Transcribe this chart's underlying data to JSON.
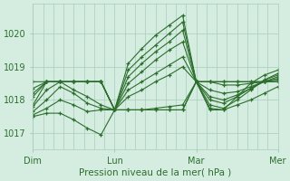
{
  "bg_color": "#d4ede0",
  "grid_color": "#a8cdb8",
  "line_color": "#2d6e2d",
  "marker_color": "#2d6e2d",
  "xlabel_text": "Pression niveau de la mer( hPa )",
  "x_tick_labels": [
    "Dim",
    "Lun",
    "Mar",
    "Mer"
  ],
  "x_tick_positions": [
    0,
    48,
    96,
    144
  ],
  "ylim": [
    1016.5,
    1020.9
  ],
  "yticks": [
    1017,
    1018,
    1019,
    1020
  ],
  "xlim": [
    0,
    144
  ],
  "series": [
    [
      0,
      1017.85,
      8,
      1018.55,
      16,
      1018.55,
      24,
      1018.55,
      32,
      1018.55,
      40,
      1018.55,
      48,
      1017.7,
      56,
      1019.1,
      64,
      1019.55,
      72,
      1019.95,
      80,
      1020.25,
      88,
      1020.55,
      96,
      1018.55,
      104,
      1017.75,
      112,
      1017.7,
      120,
      1018.1,
      128,
      1018.5,
      136,
      1018.75,
      144,
      1018.9
    ],
    [
      0,
      1018.1,
      8,
      1018.55,
      16,
      1018.55,
      24,
      1018.55,
      32,
      1018.55,
      40,
      1018.55,
      48,
      1017.7,
      56,
      1018.9,
      64,
      1019.3,
      72,
      1019.65,
      80,
      1020.0,
      88,
      1020.35,
      96,
      1018.55,
      104,
      1017.85,
      112,
      1017.75,
      120,
      1018.0,
      128,
      1018.3,
      136,
      1018.6,
      144,
      1018.8
    ],
    [
      0,
      1018.2,
      8,
      1018.55,
      16,
      1018.55,
      24,
      1018.55,
      32,
      1018.55,
      40,
      1018.55,
      48,
      1017.7,
      56,
      1018.7,
      64,
      1019.1,
      72,
      1019.45,
      80,
      1019.75,
      88,
      1020.1,
      96,
      1018.55,
      104,
      1018.0,
      112,
      1017.9,
      120,
      1018.1,
      128,
      1018.35,
      136,
      1018.6,
      144,
      1018.75
    ],
    [
      0,
      1018.35,
      8,
      1018.55,
      16,
      1018.55,
      24,
      1018.55,
      32,
      1018.55,
      40,
      1018.55,
      48,
      1017.7,
      56,
      1018.5,
      64,
      1018.85,
      72,
      1019.2,
      80,
      1019.5,
      88,
      1019.75,
      96,
      1018.55,
      104,
      1018.1,
      112,
      1018.0,
      120,
      1018.15,
      128,
      1018.35,
      136,
      1018.55,
      144,
      1018.7
    ],
    [
      0,
      1018.55,
      8,
      1018.55,
      16,
      1018.55,
      24,
      1018.55,
      32,
      1018.55,
      40,
      1018.55,
      48,
      1017.7,
      56,
      1018.3,
      64,
      1018.55,
      72,
      1018.8,
      80,
      1019.05,
      88,
      1019.3,
      96,
      1018.55,
      104,
      1018.3,
      112,
      1018.2,
      120,
      1018.25,
      128,
      1018.4,
      136,
      1018.55,
      144,
      1018.65
    ],
    [
      0,
      1017.8,
      8,
      1018.3,
      16,
      1018.55,
      24,
      1018.3,
      32,
      1018.1,
      40,
      1017.85,
      48,
      1017.7,
      56,
      1018.1,
      64,
      1018.3,
      72,
      1018.55,
      80,
      1018.75,
      88,
      1019.0,
      96,
      1018.55,
      104,
      1018.55,
      112,
      1018.45,
      120,
      1018.45,
      128,
      1018.5,
      136,
      1018.55,
      144,
      1018.6
    ],
    [
      0,
      1017.65,
      8,
      1018.0,
      16,
      1018.4,
      24,
      1018.2,
      32,
      1017.9,
      40,
      1017.75,
      48,
      1017.7,
      56,
      1017.7,
      64,
      1017.7,
      72,
      1017.75,
      80,
      1017.8,
      88,
      1017.85,
      96,
      1018.55,
      104,
      1018.55,
      112,
      1018.55,
      120,
      1018.55,
      128,
      1018.55,
      136,
      1018.55,
      144,
      1018.55
    ],
    [
      0,
      1017.55,
      8,
      1017.75,
      16,
      1018.0,
      24,
      1017.85,
      32,
      1017.65,
      40,
      1017.7,
      48,
      1017.7,
      56,
      1017.7,
      64,
      1017.7,
      72,
      1017.7,
      80,
      1017.7,
      88,
      1017.7,
      96,
      1018.55,
      104,
      1018.55,
      112,
      1018.55,
      120,
      1018.55,
      128,
      1018.55,
      136,
      1018.55,
      144,
      1018.55
    ],
    [
      0,
      1017.5,
      8,
      1017.6,
      16,
      1017.6,
      24,
      1017.4,
      32,
      1017.15,
      40,
      1016.95,
      48,
      1017.7,
      56,
      1017.7,
      64,
      1017.7,
      72,
      1017.7,
      80,
      1017.7,
      88,
      1017.7,
      96,
      1018.55,
      104,
      1017.7,
      112,
      1017.7,
      120,
      1017.85,
      128,
      1018.0,
      136,
      1018.2,
      144,
      1018.4
    ]
  ]
}
